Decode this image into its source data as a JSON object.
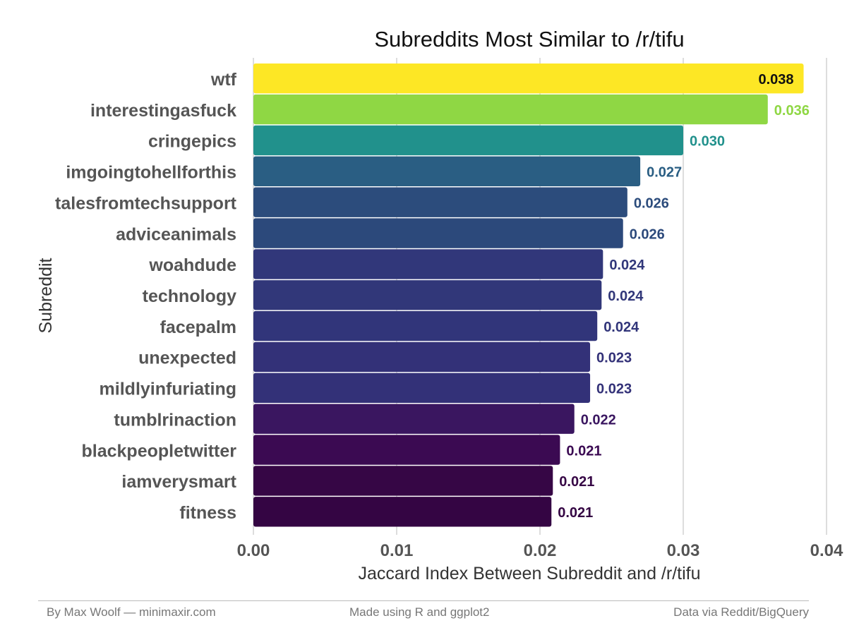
{
  "chart_data": {
    "type": "bar",
    "orientation": "horizontal",
    "title": "Subreddits Most Similar to /r/tifu",
    "xlabel": "Jaccard Index Between Subreddit and /r/tifu",
    "ylabel": "Subreddit",
    "xlim": [
      0,
      0.04
    ],
    "xticks": [
      "0.00",
      "0.01",
      "0.02",
      "0.03",
      "0.04"
    ],
    "grid": "vertical major",
    "categories": [
      "wtf",
      "interestingasfuck",
      "cringepics",
      "imgoingtohellforthis",
      "talesfromtechsupport",
      "adviceanimals",
      "woahdude",
      "technology",
      "facepalm",
      "unexpected",
      "mildlyinfuriating",
      "tumblrinaction",
      "blackpeopletwitter",
      "iamverysmart",
      "fitness"
    ],
    "values": [
      0.0384,
      0.0359,
      0.03,
      0.027,
      0.0261,
      0.0258,
      0.0244,
      0.0243,
      0.024,
      0.0235,
      0.0235,
      0.0224,
      0.0214,
      0.0209,
      0.0208
    ],
    "value_labels": [
      "0.038",
      "0.036",
      "0.030",
      "0.027",
      "0.026",
      "0.026",
      "0.024",
      "0.024",
      "0.024",
      "0.023",
      "0.023",
      "0.022",
      "0.021",
      "0.021",
      "0.021"
    ],
    "colors": [
      "#fde725",
      "#8fd744",
      "#21918c",
      "#2a5e83",
      "#2c4c7c",
      "#2c497b",
      "#31377a",
      "#313779",
      "#31357a",
      "#333178",
      "#333178",
      "#3a1660",
      "#3b0a52",
      "#360645",
      "#340543"
    ],
    "label_colors": [
      "#111111",
      "#8fd744",
      "#21918c",
      "#2a5e83",
      "#2c4c7c",
      "#2c497b",
      "#31377a",
      "#313779",
      "#31357a",
      "#333178",
      "#333178",
      "#3a1660",
      "#3b0a52",
      "#360645",
      "#340543"
    ]
  },
  "footer": {
    "left": "By Max Woolf — minimaxir.com",
    "center": "Made using R and ggplot2",
    "right": "Data via Reddit/BigQuery"
  }
}
